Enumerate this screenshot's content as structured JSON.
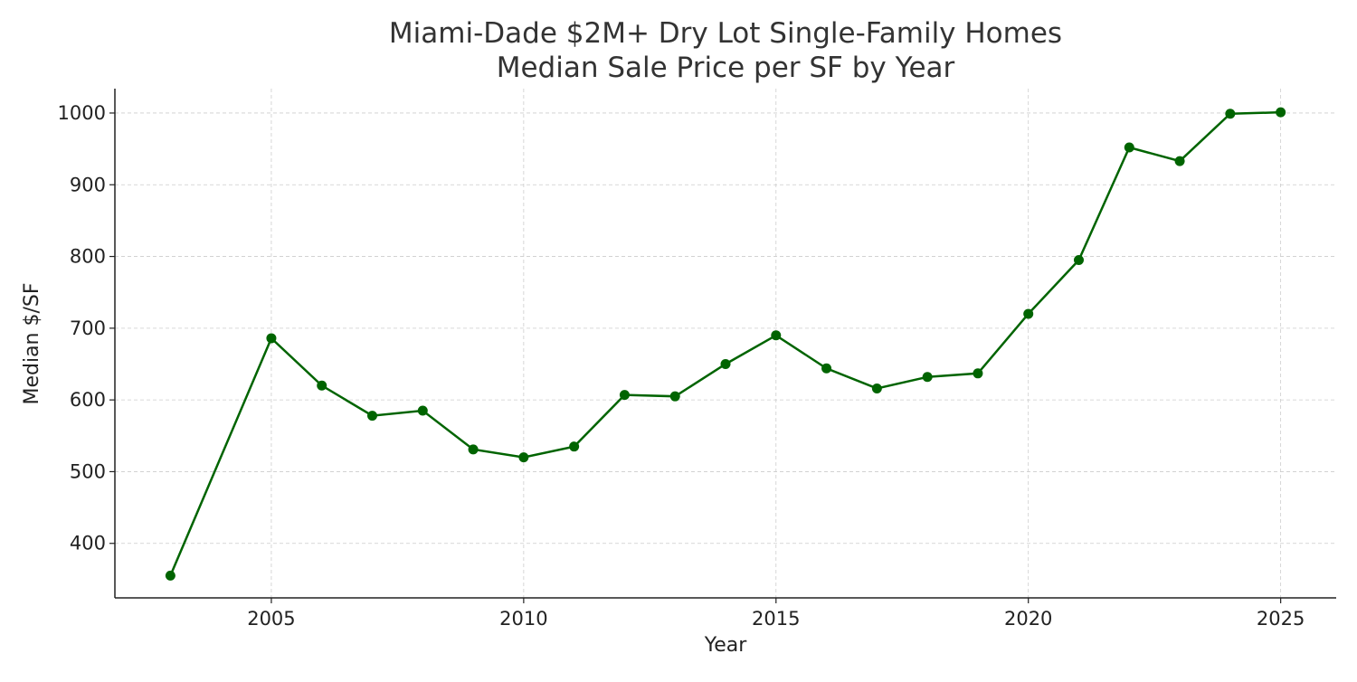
{
  "chart_data": {
    "type": "line",
    "title_line1": "Miami-Dade $2M+ Dry Lot Single-Family Homes",
    "title_line2": "Median Sale Price per SF by Year",
    "xlabel": "Year",
    "ylabel": "Median $/SF",
    "x": [
      2003,
      2005,
      2006,
      2007,
      2008,
      2009,
      2010,
      2011,
      2012,
      2013,
      2014,
      2015,
      2016,
      2017,
      2018,
      2019,
      2020,
      2021,
      2022,
      2023,
      2024,
      2025
    ],
    "values": [
      355,
      686,
      620,
      578,
      585,
      531,
      520,
      535,
      607,
      605,
      650,
      690,
      644,
      616,
      632,
      637,
      720,
      795,
      952,
      933,
      999,
      1001
    ],
    "xlim": [
      2001.9,
      2026.1
    ],
    "ylim": [
      324,
      1034
    ],
    "xticks": [
      2005,
      2010,
      2015,
      2020,
      2025
    ],
    "yticks": [
      400,
      500,
      600,
      700,
      800,
      900,
      1000
    ],
    "grid": true,
    "line_color": "#006400",
    "marker": "circle"
  }
}
